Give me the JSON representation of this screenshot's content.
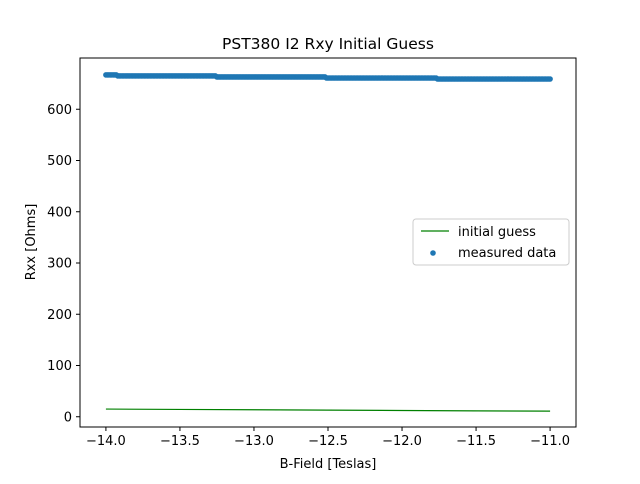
{
  "chart_data": {
    "type": "scatter",
    "title": "PST380 I2 Rxy Initial Guess",
    "xlabel": "B-Field [Teslas]",
    "ylabel": "Rxx [Ohms]",
    "xlim": [
      -14.175,
      -10.825
    ],
    "ylim": [
      -20,
      700
    ],
    "xticks": [
      -14.0,
      -13.5,
      -13.0,
      -12.5,
      -12.0,
      -11.5,
      -11.0
    ],
    "xtick_labels": [
      "−14.0",
      "−13.5",
      "−13.0",
      "−12.5",
      "−12.0",
      "−11.5",
      "−11.0"
    ],
    "yticks": [
      0,
      100,
      200,
      300,
      400,
      500,
      600
    ],
    "ytick_labels": [
      "0",
      "100",
      "200",
      "300",
      "400",
      "500",
      "600"
    ],
    "grid": false,
    "legend_position": "center-right",
    "colors": {
      "measured": "#1f77b4",
      "guess": "#008000",
      "axes": "#000000"
    },
    "series": [
      {
        "name": "initial guess",
        "kind": "line",
        "points": [
          [
            -14.0,
            15
          ],
          [
            -13.5,
            14.3
          ],
          [
            -13.0,
            13.6
          ],
          [
            -12.5,
            12.9
          ],
          [
            -12.0,
            12.2
          ],
          [
            -11.5,
            11.5
          ],
          [
            -11.0,
            11
          ]
        ]
      },
      {
        "name": "measured data",
        "kind": "scatter",
        "segments": [
          {
            "x_start": -14.0,
            "x_end": -13.93,
            "y": 667
          },
          {
            "x_start": -13.92,
            "x_end": -13.26,
            "y": 665
          },
          {
            "x_start": -13.25,
            "x_end": -12.52,
            "y": 663
          },
          {
            "x_start": -12.51,
            "x_end": -11.77,
            "y": 661
          },
          {
            "x_start": -11.76,
            "x_end": -11.0,
            "y": 659
          }
        ],
        "spacing": 0.01
      }
    ]
  }
}
